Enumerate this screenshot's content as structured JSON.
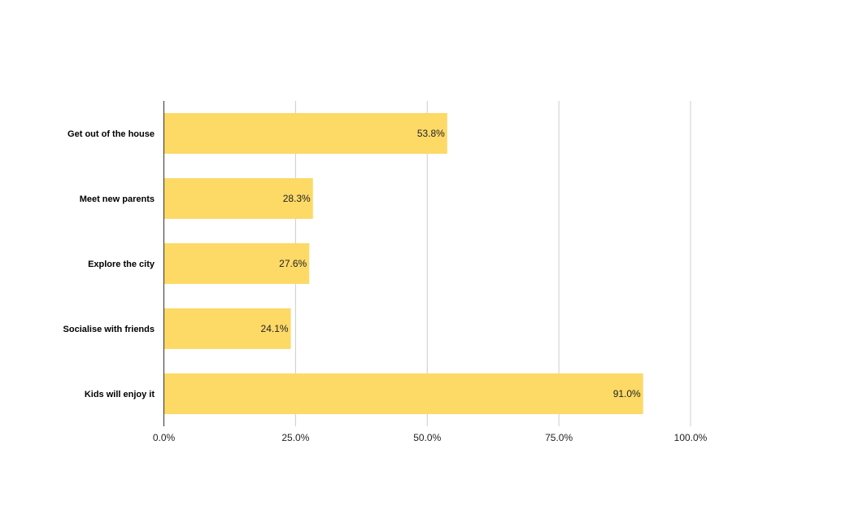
{
  "chart_data": {
    "type": "bar",
    "orientation": "horizontal",
    "categories": [
      "Get out of the house",
      "Meet new parents",
      "Explore the city",
      "Socialise with friends",
      "Kids will enjoy it"
    ],
    "values": [
      53.8,
      28.3,
      27.6,
      24.1,
      91.0
    ],
    "data_labels": [
      "53.8%",
      "28.3%",
      "27.6%",
      "24.1%",
      "91.0%"
    ],
    "xlim": [
      0,
      100
    ],
    "x_ticks": [
      0,
      25,
      50,
      75,
      100
    ],
    "x_tick_labels": [
      "0.0%",
      "25.0%",
      "50.0%",
      "75.0%",
      "100.0%"
    ],
    "title": "",
    "xlabel": "",
    "ylabel": "",
    "grid": true,
    "legend": "none",
    "bar_color": "#fdd966",
    "grid_color": "#cccccc",
    "axis_color": "#333333"
  }
}
